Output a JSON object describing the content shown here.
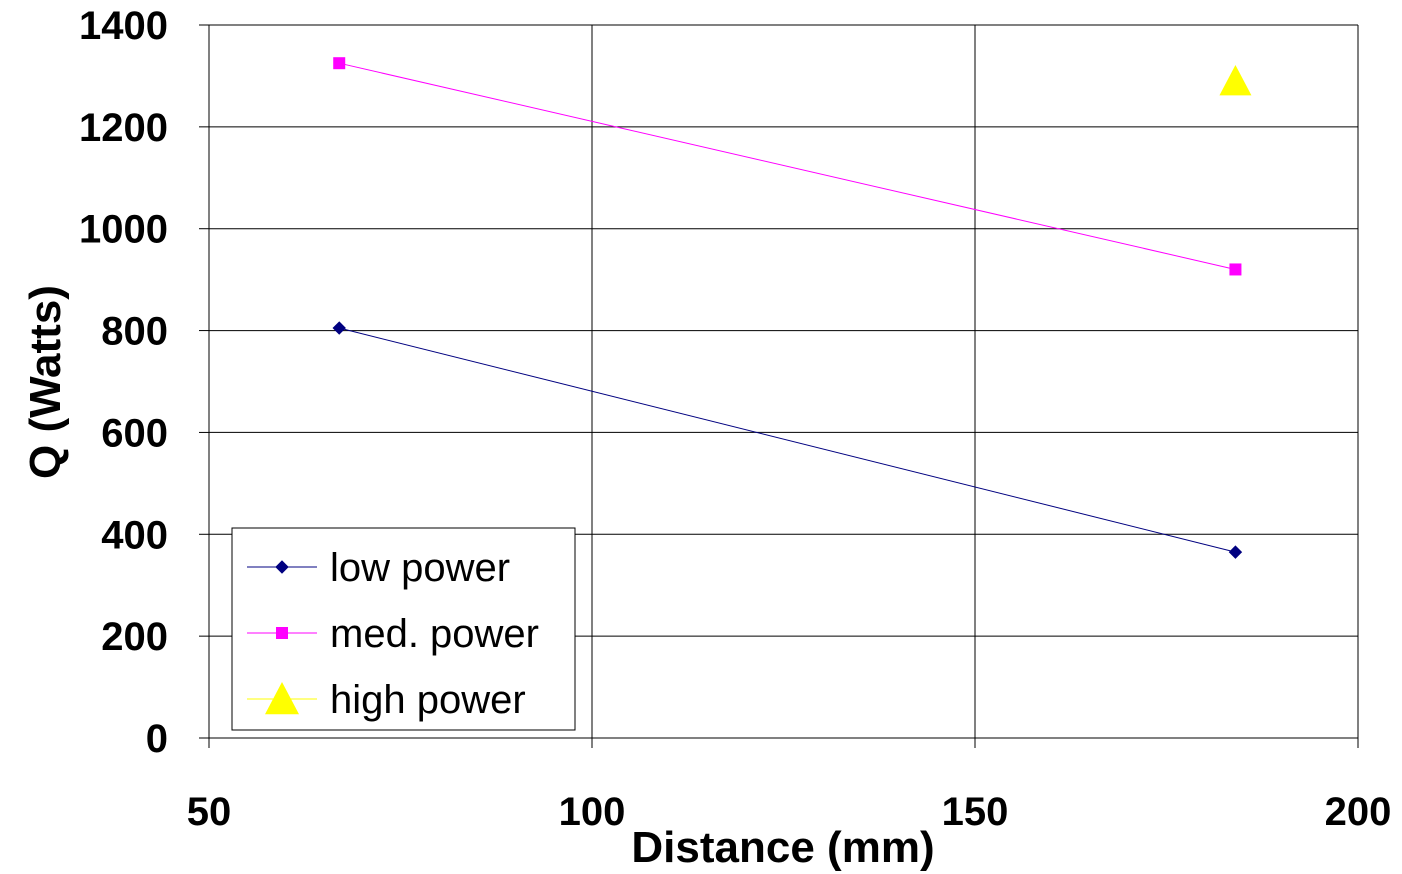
{
  "chart_data": {
    "type": "scatter",
    "title": "",
    "xlabel": "Distance (mm)",
    "ylabel": "Q (Watts)",
    "xlim": [
      50,
      200
    ],
    "ylim": [
      0,
      1400
    ],
    "xticks": [
      50,
      100,
      150,
      200
    ],
    "yticks": [
      0,
      200,
      400,
      600,
      800,
      1000,
      1200,
      1400
    ],
    "xtick_labels": [
      "50",
      "100",
      "150",
      "200"
    ],
    "ytick_labels": [
      "0",
      "200",
      "400",
      "600",
      "800",
      "1000",
      "1200",
      "1400"
    ],
    "grid": true,
    "legend_position": "bottom-left",
    "series": [
      {
        "name": "low power",
        "x": [
          67,
          184
        ],
        "y": [
          805,
          365
        ],
        "color": "#000080",
        "marker": "diamond",
        "line": true
      },
      {
        "name": "med. power",
        "x": [
          67,
          184
        ],
        "y": [
          1325,
          920
        ],
        "color": "#FF00FF",
        "marker": "square",
        "line": true
      },
      {
        "name": "high power",
        "x": [
          184
        ],
        "y": [
          1290
        ],
        "color": "#FFFF00",
        "marker": "triangle",
        "line": true
      }
    ]
  }
}
